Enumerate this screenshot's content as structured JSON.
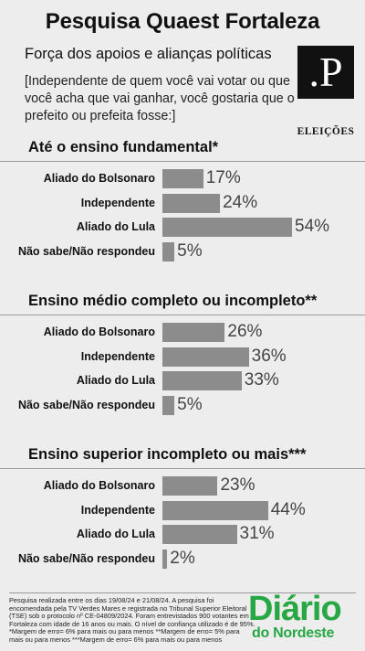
{
  "header": {
    "title": "Pesquisa Quaest Fortaleza",
    "subtitle": "Força dos apoios e alianças políticas",
    "question": "[Independente de quem você vai votar ou que você acha que vai ganhar, você gostaria que o prefeito ou prefeita fosse:]",
    "logo_letter": ".P",
    "logo_caption": "ELEIÇÕES"
  },
  "chart_data": {
    "type": "bar",
    "orientation": "horizontal",
    "categories": [
      "Aliado do Bolsonaro",
      "Independente",
      "Aliado do Lula",
      "Não sabe/Não respondeu"
    ],
    "unit": "%",
    "series": [
      {
        "name": "Até o ensino fundamental*",
        "values": [
          17,
          24,
          54,
          5
        ]
      },
      {
        "name": "Ensino médio completo ou incompleto**",
        "values": [
          26,
          36,
          33,
          5
        ]
      },
      {
        "name": "Ensino superior incompleto ou mais***",
        "values": [
          23,
          44,
          31,
          2
        ]
      }
    ],
    "bar_color": "#8c8c8c"
  },
  "footer": {
    "methodology": "Pesquisa realizada entre os dias 19/08/24 e 21/08/24. A pesquisa foi encomendada pela TV Verdes Mares e registrada no Tribunal Superior Eleitoral (TSE) sob o protocolo nº CE-04809/2024. Foram entrevistados 900 votantes em Fortaleza com idade de 16 anos ou mais. O nível de confiança utilizado é de 95%.",
    "margin_1": "*Margem de erro= 6% para mais ou para menos",
    "margin_2": "**Margem de erro= 5% para mais ou para menos",
    "margin_3": "***Margem de erro= 6% para mais ou para menos",
    "brand_main": "Diário",
    "brand_sub": "do Nordeste",
    "brand_color": "#28a745"
  }
}
